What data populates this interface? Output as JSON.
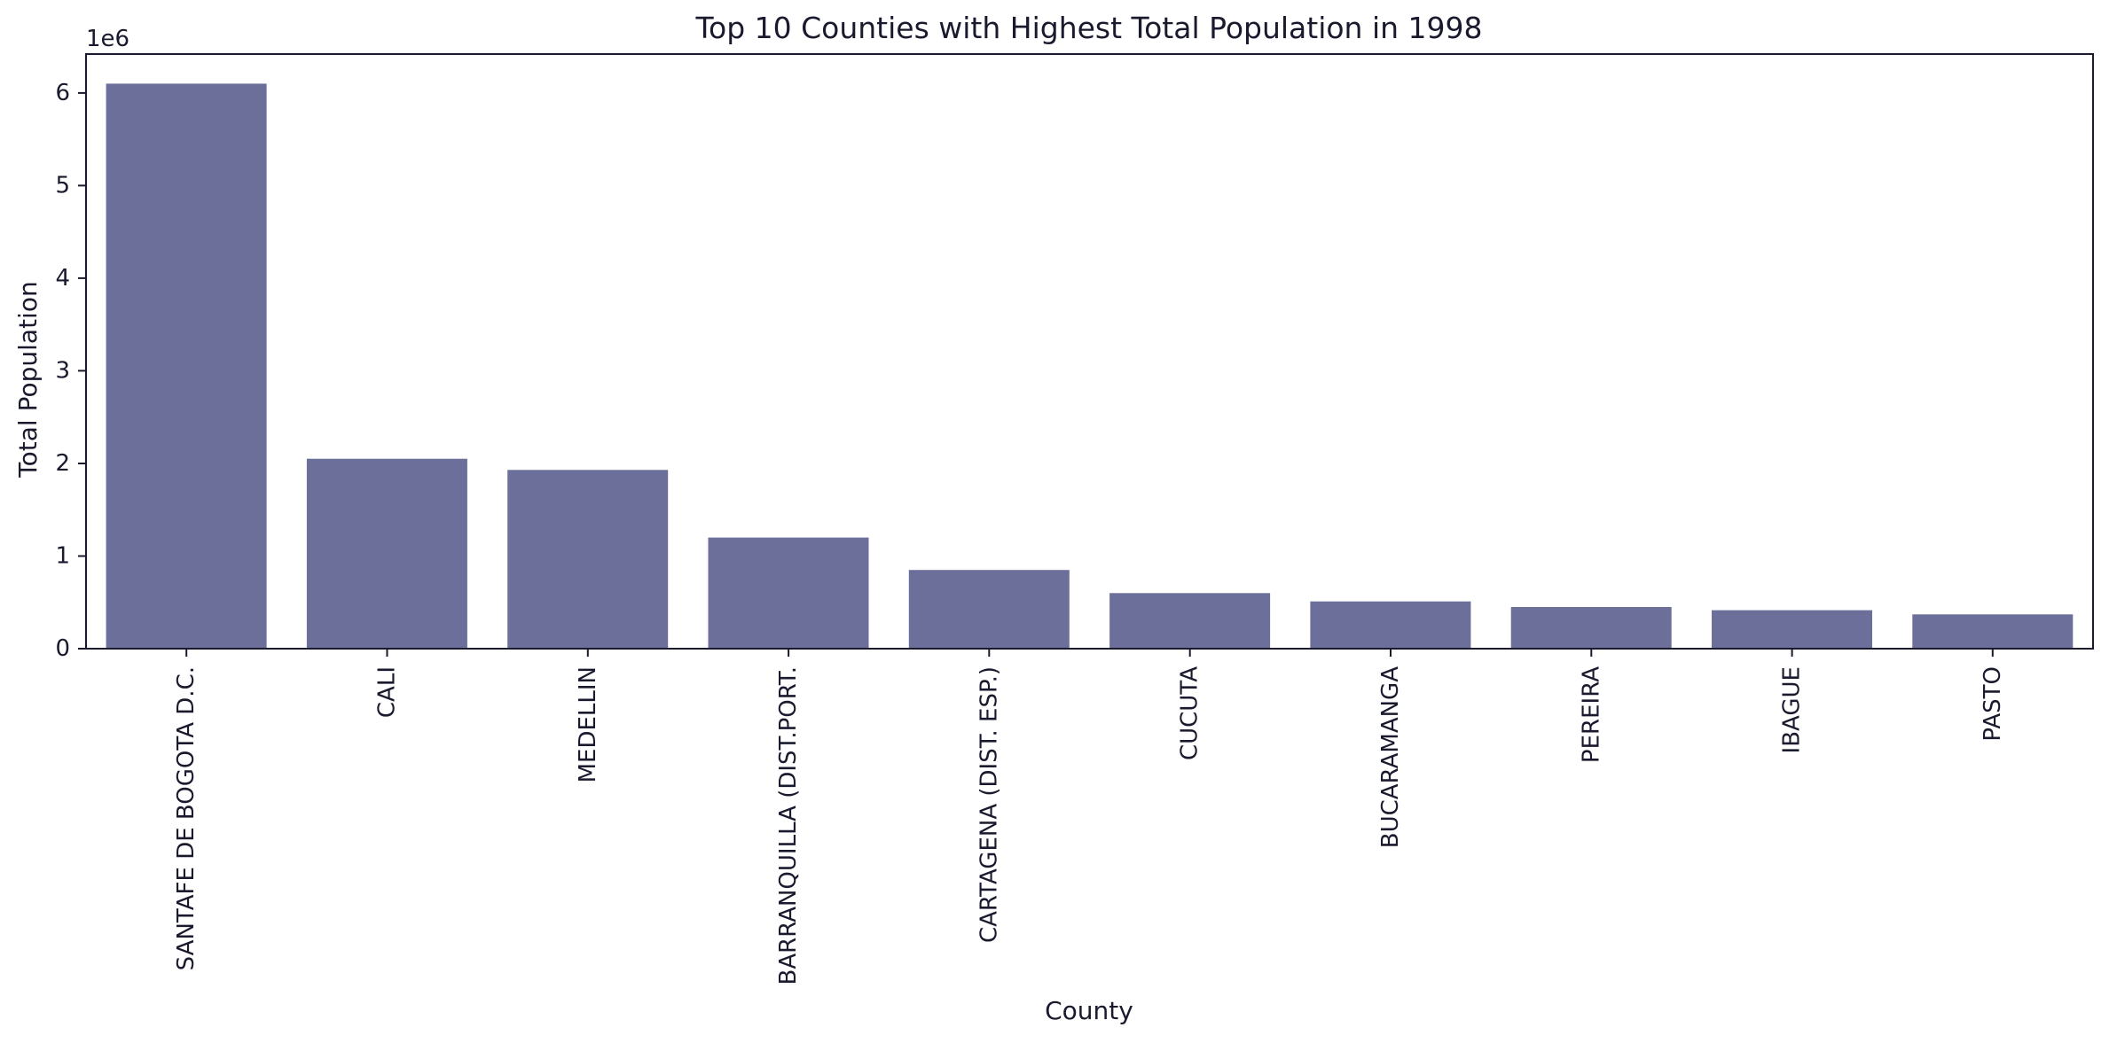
{
  "chart_data": {
    "type": "bar",
    "title": "Top 10 Counties with Highest Total Population in 1998",
    "xlabel": "County",
    "ylabel": "Total Population",
    "y_offset_label": "1e6",
    "y_scale_factor": 1000000,
    "ylim": [
      0,
      6.42
    ],
    "yticks": [
      0,
      1,
      2,
      3,
      4,
      5,
      6
    ],
    "grid": false,
    "legend": "none",
    "bar_color": "#6c6f9a",
    "categories": [
      "SANTAFE DE BOGOTA D.C.",
      "CALI",
      "MEDELLIN",
      "BARRANQUILLA  (DIST.PORT.",
      "CARTAGENA (DIST. ESP.)",
      "CUCUTA",
      "BUCARAMANGA",
      "PEREIRA",
      "IBAGUE",
      "PASTO"
    ],
    "values": [
      6100000,
      2050000,
      1930000,
      1200000,
      850000,
      600000,
      510000,
      450000,
      415000,
      370000
    ]
  }
}
